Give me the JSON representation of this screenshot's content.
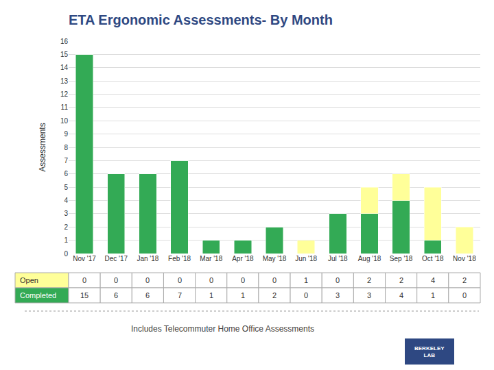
{
  "chart_data": {
    "type": "bar",
    "title": "ETA Ergonomic Assessments- By Month",
    "subtitle": "Includes Telecommuter Home Office Assessments",
    "ylabel": "Assessments",
    "categories": [
      "Nov '17",
      "Dec '17",
      "Jan '18",
      "Feb '18",
      "Mar '18",
      "Apr '18",
      "May '18",
      "Jun '18",
      "Jul '18",
      "Aug '18",
      "Sep '18",
      "Oct '18",
      "Nov '18"
    ],
    "series": [
      {
        "name": "Completed",
        "color": "#33AA55",
        "values": [
          15,
          6,
          6,
          7,
          1,
          1,
          2,
          0,
          3,
          3,
          4,
          1,
          0
        ]
      },
      {
        "name": "Open",
        "color": "#FFFF99",
        "values": [
          0,
          0,
          0,
          0,
          0,
          0,
          0,
          1,
          0,
          2,
          2,
          4,
          2
        ]
      }
    ],
    "stacked": true,
    "ylim": [
      0,
      16
    ],
    "yticks": [
      0,
      1,
      2,
      3,
      4,
      5,
      6,
      7,
      8,
      9,
      10,
      11,
      12,
      13,
      14,
      15,
      16
    ],
    "grid": true,
    "annotations": [
      "BERKELEY\nLAB"
    ]
  }
}
